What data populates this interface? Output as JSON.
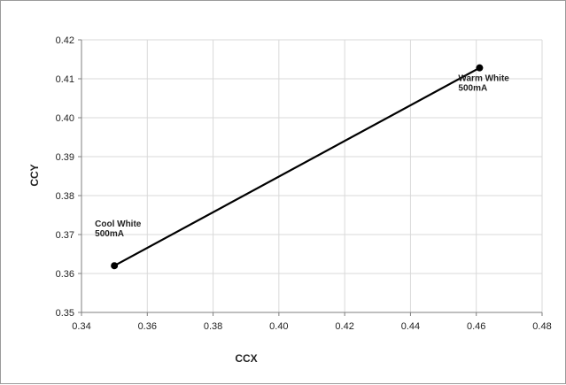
{
  "chart_data": {
    "type": "line",
    "title": "",
    "xlabel": "CCX",
    "ylabel": "CCY",
    "xlim": [
      0.34,
      0.48
    ],
    "ylim": [
      0.35,
      0.42
    ],
    "xticks": [
      "0.34",
      "0.36",
      "0.38",
      "0.40",
      "0.42",
      "0.44",
      "0.46",
      "0.48"
    ],
    "yticks": [
      "0.35",
      "0.36",
      "0.37",
      "0.38",
      "0.39",
      "0.40",
      "0.41",
      "0.42"
    ],
    "grid": true,
    "legend": "none",
    "series": [
      {
        "points": [
          {
            "x": 0.35,
            "y": 0.362
          },
          {
            "x": 0.461,
            "y": 0.4128
          }
        ]
      }
    ],
    "annotations": [
      {
        "lines": [
          "Cool White",
          "500mA"
        ],
        "x": 0.35,
        "y": 0.362
      },
      {
        "lines": [
          "Warm White",
          "500mA"
        ],
        "x": 0.461,
        "y": 0.4128
      }
    ],
    "colors": {
      "line": "#000000",
      "grid": "#d9d9d9",
      "axis": "#7f7f7f"
    }
  }
}
